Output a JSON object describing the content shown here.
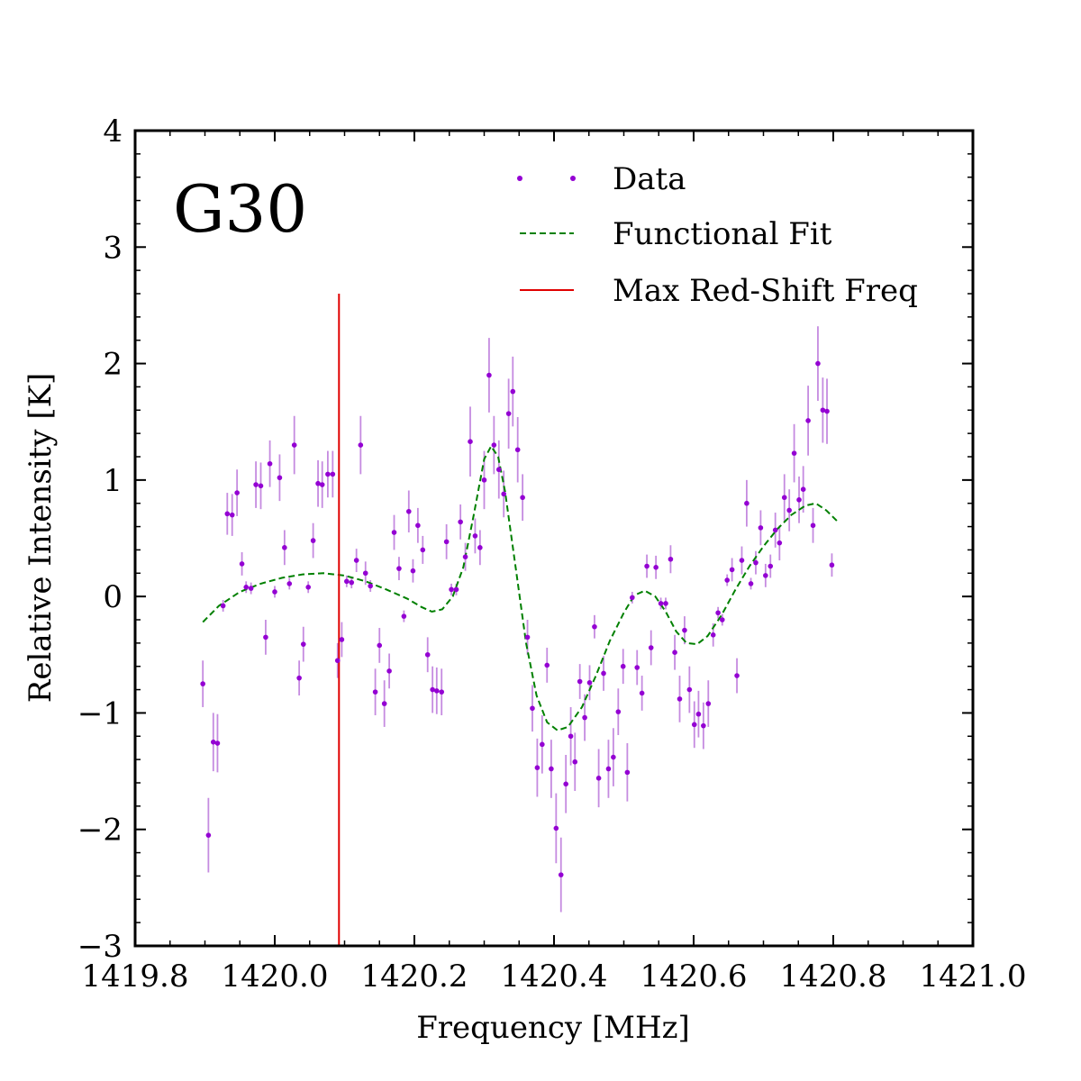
{
  "chart_data": {
    "type": "scatter",
    "title": "",
    "panel_label": "G30",
    "xlabel": "Frequency [MHz]",
    "ylabel": "Relative Intensity [K]",
    "xlim": [
      1419.8,
      1421.0
    ],
    "ylim": [
      -3,
      4
    ],
    "xticks": [
      1419.8,
      1420.0,
      1420.2,
      1420.4,
      1420.6,
      1420.8,
      1421.0
    ],
    "xtick_labels": [
      "1419.8",
      "1420.0",
      "1420.2",
      "1420.4",
      "1420.6",
      "1420.8",
      "1421.0"
    ],
    "yticks": [
      -3,
      -2,
      -1,
      0,
      1,
      2,
      3,
      4
    ],
    "ytick_labels": [
      "−3",
      "−2",
      "−1",
      "0",
      "1",
      "2",
      "3",
      "4"
    ],
    "grid": false,
    "legend_position": "top-right",
    "legend": [
      "Data",
      "Functional Fit",
      "Max Red-Shift Freq"
    ],
    "colors": {
      "data": "#9400d3",
      "errorbar": "#c58be0",
      "fit": "#008000",
      "redshift": "#e00000"
    },
    "series": [
      {
        "name": "Data",
        "kind": "errorbar",
        "points": [
          [
            1419.897,
            -0.75,
            0.2
          ],
          [
            1419.905,
            -2.05,
            0.32
          ],
          [
            1419.912,
            -1.25,
            0.25
          ],
          [
            1419.918,
            -1.26,
            0.25
          ],
          [
            1419.926,
            -0.08,
            0.05
          ],
          [
            1419.932,
            0.71,
            0.18
          ],
          [
            1419.939,
            0.7,
            0.18
          ],
          [
            1419.946,
            0.89,
            0.2
          ],
          [
            1419.953,
            0.28,
            0.1
          ],
          [
            1419.959,
            0.08,
            0.05
          ],
          [
            1419.966,
            0.07,
            0.05
          ],
          [
            1419.973,
            0.96,
            0.2
          ],
          [
            1419.98,
            0.95,
            0.2
          ],
          [
            1419.987,
            -0.35,
            0.15
          ],
          [
            1419.993,
            1.14,
            0.2
          ],
          [
            1420.0,
            0.04,
            0.05
          ],
          [
            1420.007,
            1.02,
            0.2
          ],
          [
            1420.014,
            0.42,
            0.15
          ],
          [
            1420.021,
            0.11,
            0.05
          ],
          [
            1420.028,
            1.3,
            0.25
          ],
          [
            1420.035,
            -0.7,
            0.15
          ],
          [
            1420.041,
            -0.41,
            0.15
          ],
          [
            1420.048,
            0.08,
            0.05
          ],
          [
            1420.055,
            0.48,
            0.15
          ],
          [
            1420.062,
            0.97,
            0.2
          ],
          [
            1420.068,
            0.96,
            0.2
          ],
          [
            1420.076,
            1.05,
            0.2
          ],
          [
            1420.083,
            1.05,
            0.2
          ],
          [
            1420.09,
            -0.55,
            0.15
          ],
          [
            1420.096,
            -0.37,
            0.15
          ],
          [
            1420.103,
            0.13,
            0.05
          ],
          [
            1420.11,
            0.12,
            0.05
          ],
          [
            1420.117,
            0.31,
            0.1
          ],
          [
            1420.123,
            1.3,
            0.25
          ],
          [
            1420.13,
            0.2,
            0.1
          ],
          [
            1420.137,
            0.09,
            0.05
          ],
          [
            1420.144,
            -0.82,
            0.2
          ],
          [
            1420.15,
            -0.42,
            0.15
          ],
          [
            1420.157,
            -0.92,
            0.2
          ],
          [
            1420.164,
            -0.64,
            0.15
          ],
          [
            1420.171,
            0.55,
            0.15
          ],
          [
            1420.178,
            0.24,
            0.1
          ],
          [
            1420.185,
            -0.17,
            0.05
          ],
          [
            1420.192,
            0.73,
            0.18
          ],
          [
            1420.198,
            0.22,
            0.1
          ],
          [
            1420.205,
            0.61,
            0.15
          ],
          [
            1420.212,
            0.4,
            0.12
          ],
          [
            1420.219,
            -0.5,
            0.15
          ],
          [
            1420.226,
            -0.8,
            0.2
          ],
          [
            1420.232,
            -0.81,
            0.2
          ],
          [
            1420.239,
            -0.82,
            0.2
          ],
          [
            1420.246,
            0.47,
            0.15
          ],
          [
            1420.253,
            0.06,
            0.05
          ],
          [
            1420.26,
            0.06,
            0.05
          ],
          [
            1420.266,
            0.64,
            0.15
          ],
          [
            1420.273,
            0.34,
            0.12
          ],
          [
            1420.28,
            1.33,
            0.3
          ],
          [
            1420.287,
            0.52,
            0.15
          ],
          [
            1420.294,
            0.42,
            0.15
          ],
          [
            1420.3,
            1.0,
            0.25
          ],
          [
            1420.307,
            1.9,
            0.32
          ],
          [
            1420.314,
            1.3,
            0.25
          ],
          [
            1420.321,
            1.09,
            0.25
          ],
          [
            1420.328,
            0.88,
            0.2
          ],
          [
            1420.335,
            1.57,
            0.3
          ],
          [
            1420.341,
            1.76,
            0.3
          ],
          [
            1420.348,
            1.26,
            0.28
          ],
          [
            1420.355,
            0.85,
            0.2
          ],
          [
            1420.362,
            -0.35,
            0.15
          ],
          [
            1420.369,
            -0.96,
            0.2
          ],
          [
            1420.376,
            -1.47,
            0.25
          ],
          [
            1420.383,
            -1.27,
            0.25
          ],
          [
            1420.39,
            -0.59,
            0.15
          ],
          [
            1420.396,
            -1.48,
            0.25
          ],
          [
            1420.403,
            -1.99,
            0.3
          ],
          [
            1420.41,
            -2.39,
            0.32
          ],
          [
            1420.417,
            -1.61,
            0.25
          ],
          [
            1420.424,
            -1.2,
            0.25
          ],
          [
            1420.43,
            -1.42,
            0.25
          ],
          [
            1420.437,
            -0.73,
            0.15
          ],
          [
            1420.444,
            -1.04,
            0.2
          ],
          [
            1420.451,
            -0.74,
            0.15
          ],
          [
            1420.458,
            -0.26,
            0.1
          ],
          [
            1420.464,
            -1.56,
            0.25
          ],
          [
            1420.471,
            -0.66,
            0.15
          ],
          [
            1420.478,
            -1.48,
            0.25
          ],
          [
            1420.485,
            -1.38,
            0.25
          ],
          [
            1420.492,
            -0.99,
            0.2
          ],
          [
            1420.499,
            -0.6,
            0.15
          ],
          [
            1420.505,
            -1.51,
            0.25
          ],
          [
            1420.512,
            -0.01,
            0.05
          ],
          [
            1420.519,
            -0.61,
            0.15
          ],
          [
            1420.526,
            -0.83,
            0.15
          ],
          [
            1420.533,
            0.26,
            0.1
          ],
          [
            1420.539,
            -0.44,
            0.15
          ],
          [
            1420.546,
            0.25,
            0.1
          ],
          [
            1420.553,
            -0.06,
            0.05
          ],
          [
            1420.56,
            -0.06,
            0.05
          ],
          [
            1420.567,
            0.32,
            0.12
          ],
          [
            1420.573,
            -0.48,
            0.15
          ],
          [
            1420.58,
            -0.88,
            0.2
          ],
          [
            1420.587,
            -0.29,
            0.12
          ],
          [
            1420.594,
            -0.8,
            0.2
          ],
          [
            1420.601,
            -1.1,
            0.2
          ],
          [
            1420.607,
            -1.01,
            0.2
          ],
          [
            1420.614,
            -1.11,
            0.2
          ],
          [
            1420.621,
            -0.92,
            0.2
          ],
          [
            1420.628,
            -0.33,
            0.1
          ],
          [
            1420.635,
            -0.14,
            0.05
          ],
          [
            1420.641,
            -0.2,
            0.05
          ],
          [
            1420.648,
            0.14,
            0.05
          ],
          [
            1420.655,
            0.23,
            0.1
          ],
          [
            1420.662,
            -0.68,
            0.15
          ],
          [
            1420.669,
            0.31,
            0.12
          ],
          [
            1420.676,
            0.8,
            0.2
          ],
          [
            1420.682,
            0.11,
            0.05
          ],
          [
            1420.689,
            0.29,
            0.1
          ],
          [
            1420.696,
            0.59,
            0.15
          ],
          [
            1420.703,
            0.18,
            0.1
          ],
          [
            1420.71,
            0.26,
            0.1
          ],
          [
            1420.717,
            0.57,
            0.15
          ],
          [
            1420.723,
            0.46,
            0.15
          ],
          [
            1420.73,
            0.85,
            0.2
          ],
          [
            1420.737,
            0.74,
            0.18
          ],
          [
            1420.744,
            1.23,
            0.25
          ],
          [
            1420.751,
            0.83,
            0.2
          ],
          [
            1420.757,
            0.92,
            0.2
          ],
          [
            1420.764,
            1.51,
            0.3
          ],
          [
            1420.771,
            0.61,
            0.15
          ],
          [
            1420.778,
            2.0,
            0.32
          ],
          [
            1420.785,
            1.6,
            0.28
          ],
          [
            1420.791,
            1.59,
            0.28
          ],
          [
            1420.798,
            0.27,
            0.1
          ]
        ]
      },
      {
        "name": "Functional Fit",
        "kind": "line",
        "points": [
          [
            1419.897,
            -0.22
          ],
          [
            1419.92,
            -0.08
          ],
          [
            1419.95,
            0.04
          ],
          [
            1419.98,
            0.11
          ],
          [
            1420.01,
            0.16
          ],
          [
            1420.04,
            0.19
          ],
          [
            1420.07,
            0.2
          ],
          [
            1420.1,
            0.18
          ],
          [
            1420.13,
            0.13
          ],
          [
            1420.16,
            0.06
          ],
          [
            1420.19,
            -0.02
          ],
          [
            1420.21,
            -0.09
          ],
          [
            1420.225,
            -0.13
          ],
          [
            1420.24,
            -0.11
          ],
          [
            1420.255,
            0.0
          ],
          [
            1420.27,
            0.25
          ],
          [
            1420.285,
            0.7
          ],
          [
            1420.3,
            1.18
          ],
          [
            1420.31,
            1.29
          ],
          [
            1420.32,
            1.2
          ],
          [
            1420.33,
            0.9
          ],
          [
            1420.345,
            0.25
          ],
          [
            1420.36,
            -0.4
          ],
          [
            1420.375,
            -0.85
          ],
          [
            1420.39,
            -1.08
          ],
          [
            1420.405,
            -1.15
          ],
          [
            1420.42,
            -1.12
          ],
          [
            1420.44,
            -0.95
          ],
          [
            1420.46,
            -0.68
          ],
          [
            1420.48,
            -0.38
          ],
          [
            1420.5,
            -0.14
          ],
          [
            1420.515,
            0.01
          ],
          [
            1420.53,
            0.05
          ],
          [
            1420.545,
            0.0
          ],
          [
            1420.56,
            -0.13
          ],
          [
            1420.575,
            -0.3
          ],
          [
            1420.59,
            -0.4
          ],
          [
            1420.605,
            -0.41
          ],
          [
            1420.62,
            -0.34
          ],
          [
            1420.64,
            -0.16
          ],
          [
            1420.66,
            0.06
          ],
          [
            1420.68,
            0.26
          ],
          [
            1420.7,
            0.43
          ],
          [
            1420.72,
            0.58
          ],
          [
            1420.74,
            0.7
          ],
          [
            1420.76,
            0.78
          ],
          [
            1420.775,
            0.8
          ],
          [
            1420.79,
            0.74
          ],
          [
            1420.805,
            0.65
          ]
        ]
      }
    ],
    "vline": {
      "name": "Max Red-Shift Freq",
      "x": 1420.092,
      "y_range": [
        -3,
        2.6
      ]
    }
  }
}
